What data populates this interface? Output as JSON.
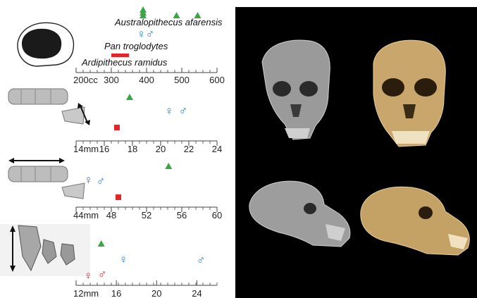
{
  "colors": {
    "ardipithecus": "#e8242b",
    "pan": "#2a7fc1",
    "australopithecus": "#3aa644",
    "axis": "#444444",
    "photo_background": "#000000"
  },
  "symbols": {
    "female": "♀",
    "male": "♂"
  },
  "legend": {
    "australopithecus_label": "Australopithecus afarensis",
    "pan_label": "Pan troglodytes",
    "ardipithecus_label": "Ardipithecus ramidus"
  },
  "icons": [
    "cranium-silhouette-icon",
    "molar-row-icon",
    "canine-teeth-icon",
    "double-arrow-icon"
  ],
  "chart_data": [
    {
      "type": "scatter",
      "name_hint": "cranial capacity",
      "xlim": [
        200,
        600
      ],
      "x_unit": "cc",
      "tick_labels": [
        "200cc",
        "300",
        "400",
        "500",
        "600"
      ],
      "tick_values": [
        200,
        300,
        400,
        500,
        600
      ],
      "ardipithecus_range": [
        300,
        350
      ],
      "australopithecus_points": [
        390,
        390,
        390,
        485,
        545
      ],
      "pan_female": 385,
      "pan_male": 410
    },
    {
      "type": "scatter",
      "name_hint": "molar row length",
      "xlim": [
        14,
        24
      ],
      "tick_labels": [
        "14mm",
        "16",
        "18",
        "20",
        "22",
        "24"
      ],
      "tick_values": [
        14,
        16,
        18,
        20,
        22,
        24
      ],
      "australopithecus_points": [
        17.8
      ],
      "pan_female": 20.6,
      "pan_male": 21.6,
      "ardipithecus_points": [
        16.9
      ]
    },
    {
      "type": "scatter",
      "name_hint": "tooth row length",
      "xlim": [
        44,
        60
      ],
      "tick_labels": [
        "44mm",
        "48",
        "52",
        "56",
        "60"
      ],
      "tick_values": [
        44,
        48,
        52,
        56,
        60
      ],
      "australopithecus_points": [
        54.5
      ],
      "pan_female": 45.4,
      "pan_male": 46.8,
      "ardipithecus_points": [
        48.8
      ]
    },
    {
      "type": "scatter",
      "name_hint": "canine size",
      "xlim": [
        12,
        26
      ],
      "tick_labels": [
        "12mm",
        "16",
        "20",
        "24"
      ],
      "tick_values": [
        12,
        16,
        20,
        24
      ],
      "australopithecus_points": [
        14.5
      ],
      "pan_female": 16.7,
      "pan_male": 24.4,
      "ardipithecus_female": 13.2,
      "ardipithecus_male": 14.6
    }
  ]
}
